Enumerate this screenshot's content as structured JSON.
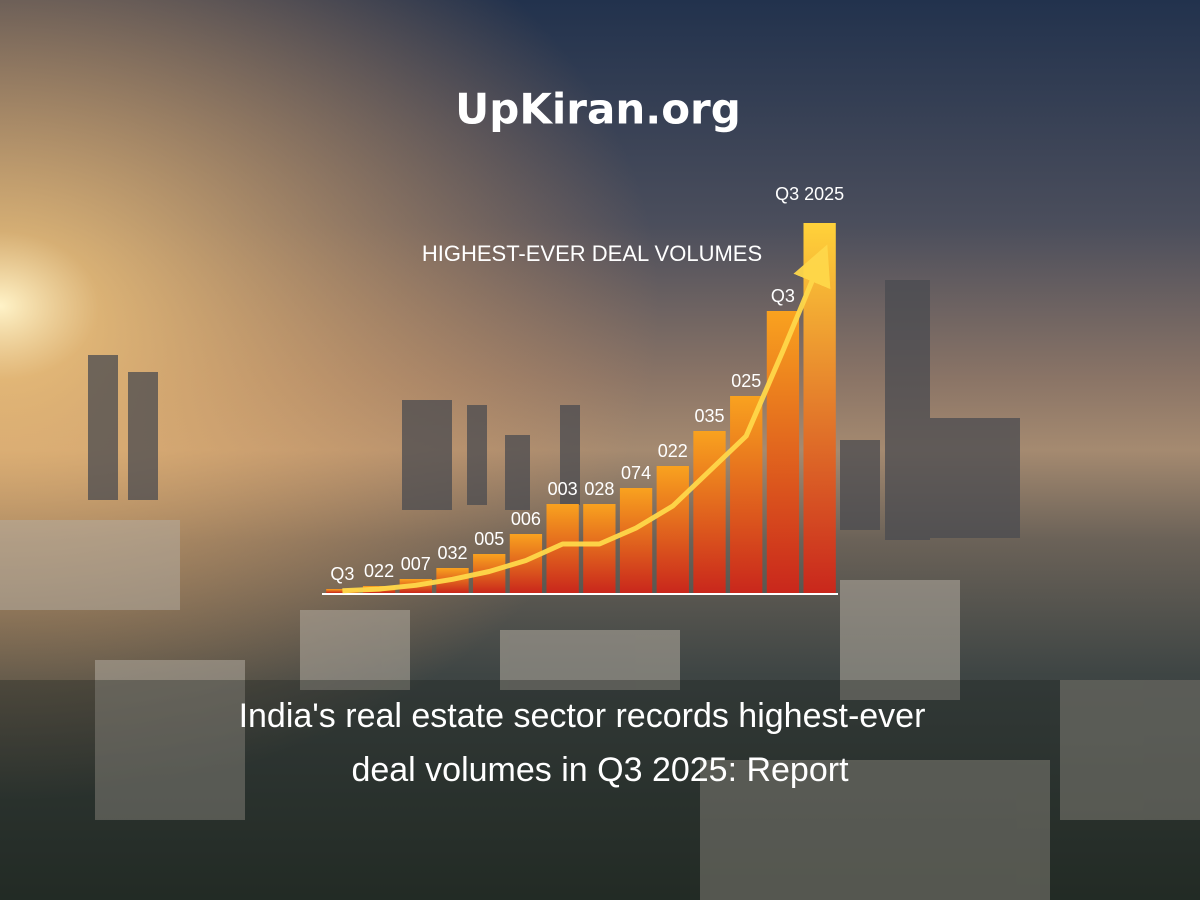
{
  "chart_data": {
    "type": "bar",
    "brand": "UpKiran.org",
    "title": "HIGHEST-EVER DEAL VOLUMES",
    "headline": [
      "India's real estate sector records highest-ever",
      "deal volumes in Q3 2025: Report"
    ],
    "categories": [
      "Q3",
      "022",
      "007",
      "032",
      "005",
      "006",
      "003",
      "028",
      "074",
      "022",
      "035",
      "025",
      "Q3",
      "Q3 2025"
    ],
    "values": [
      4,
      7,
      14,
      25,
      39,
      59,
      89,
      89,
      105,
      127,
      162,
      197,
      282,
      370
    ],
    "ylim": [
      0,
      400
    ],
    "color": "#f06a1c"
  }
}
